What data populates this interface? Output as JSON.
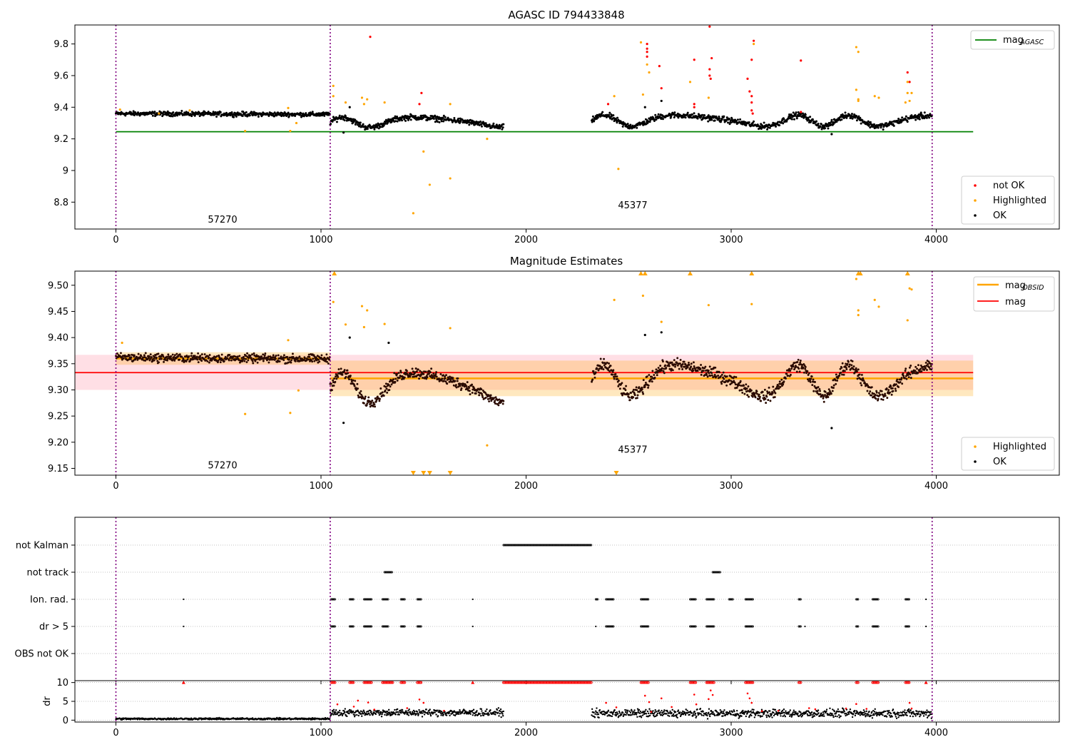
{
  "figure": {
    "title": "AGASC ID 794433848"
  },
  "chart_data": [
    {
      "type": "scatter",
      "title": "AGASC ID 794433848",
      "xlim": [
        -200,
        4600
      ],
      "ylim": [
        8.63,
        9.92
      ],
      "xticks": [
        0,
        1000,
        2000,
        3000,
        4000
      ],
      "yticks": [
        8.8,
        9.0,
        9.2,
        9.4,
        9.6,
        9.8
      ],
      "grid": false,
      "obs_boundaries": [
        0,
        1045,
        3980
      ],
      "obsid_labels": [
        {
          "text": "57270",
          "x": 520,
          "y": 8.67
        },
        {
          "text": "45377",
          "x": 2520,
          "y": 8.76
        }
      ],
      "hlines": [
        {
          "name": "mag_{AGASC}",
          "y": 9.245,
          "x0": 0,
          "x1": 4180,
          "color": "#008000"
        }
      ],
      "segments": [
        {
          "x0": 0,
          "x1": 1045,
          "y": 9.36,
          "noise": 0.012,
          "wave": 0.0,
          "trend": -0.006
        },
        {
          "x0": 1045,
          "x1": 1890,
          "y": 9.305,
          "noise": 0.015,
          "wave": 0.032
        },
        {
          "x0": 2320,
          "x1": 3980,
          "y": 9.315,
          "noise": 0.016,
          "wave": 0.035
        }
      ],
      "series": [
        {
          "name": "not OK",
          "color": "#ff0000",
          "points": [
            [
              1240,
              9.845
            ],
            [
              1490,
              9.49
            ],
            [
              1480,
              9.42
            ],
            [
              2590,
              9.8
            ],
            [
              2590,
              9.77
            ],
            [
              2590,
              9.75
            ],
            [
              2590,
              9.72
            ],
            [
              2650,
              9.66
            ],
            [
              2660,
              9.52
            ],
            [
              2820,
              9.7
            ],
            [
              2820,
              9.42
            ],
            [
              2820,
              9.4
            ],
            [
              2895,
              9.91
            ],
            [
              2895,
              9.64
            ],
            [
              2895,
              9.6
            ],
            [
              2900,
              9.58
            ],
            [
              2905,
              9.71
            ],
            [
              3080,
              9.58
            ],
            [
              3090,
              9.5
            ],
            [
              3100,
              9.7
            ],
            [
              3100,
              9.47
            ],
            [
              3100,
              9.43
            ],
            [
              3100,
              9.38
            ],
            [
              3110,
              9.82
            ],
            [
              3105,
              9.36
            ],
            [
              3340,
              9.695
            ],
            [
              3340,
              9.37
            ],
            [
              3860,
              9.62
            ],
            [
              3870,
              9.56
            ],
            [
              2400,
              9.42
            ]
          ]
        },
        {
          "name": "Highlighted",
          "color": "#ffa500",
          "points": [
            [
              1060,
              9.535
            ],
            [
              1060,
              9.47
            ],
            [
              1120,
              9.43
            ],
            [
              1200,
              9.46
            ],
            [
              1210,
              9.42
            ],
            [
              1225,
              9.45
            ],
            [
              1310,
              9.43
            ],
            [
              1450,
              8.73
            ],
            [
              1500,
              9.12
            ],
            [
              1530,
              8.91
            ],
            [
              1630,
              8.95
            ],
            [
              1630,
              9.42
            ],
            [
              1810,
              9.2
            ],
            [
              2430,
              9.47
            ],
            [
              2450,
              9.01
            ],
            [
              2560,
              9.81
            ],
            [
              2570,
              9.48
            ],
            [
              2590,
              9.67
            ],
            [
              2600,
              9.62
            ],
            [
              2800,
              9.56
            ],
            [
              2890,
              9.46
            ],
            [
              3110,
              9.8
            ],
            [
              3610,
              9.78
            ],
            [
              3620,
              9.75
            ],
            [
              3610,
              9.51
            ],
            [
              3620,
              9.45
            ],
            [
              3620,
              9.44
            ],
            [
              3700,
              9.47
            ],
            [
              3720,
              9.46
            ],
            [
              3860,
              9.56
            ],
            [
              3860,
              9.49
            ],
            [
              3880,
              9.49
            ],
            [
              3870,
              9.44
            ],
            [
              3850,
              9.43
            ],
            [
              630,
              9.25
            ],
            [
              850,
              9.25
            ],
            [
              880,
              9.3
            ],
            [
              20,
              9.385
            ],
            [
              360,
              9.38
            ],
            [
              210,
              9.36
            ],
            [
              840,
              9.395
            ]
          ]
        },
        {
          "name": "OK",
          "color": "#000000",
          "points": [
            [
              1110,
              9.24
            ],
            [
              3490,
              9.23
            ],
            [
              1140,
              9.4
            ],
            [
              2580,
              9.4
            ],
            [
              2660,
              9.44
            ]
          ]
        }
      ],
      "legends": [
        {
          "position": "top-right",
          "entries": [
            "mag_{AGASC}"
          ]
        },
        {
          "position": "lower-right",
          "entries": [
            "not OK",
            "Highlighted",
            "OK"
          ]
        }
      ]
    },
    {
      "type": "scatter",
      "title": "Magnitude Estimates",
      "xlim": [
        -200,
        4600
      ],
      "ylim": [
        9.137,
        9.527
      ],
      "xticks": [
        0,
        1000,
        2000,
        3000,
        4000
      ],
      "yticks": [
        9.15,
        9.2,
        9.25,
        9.3,
        9.35,
        9.4,
        9.45,
        9.5
      ],
      "ytick_labels": [
        "9.15",
        "9.20",
        "9.25",
        "9.30",
        "9.35",
        "9.40",
        "9.45",
        "9.50"
      ],
      "grid": false,
      "obs_boundaries": [
        0,
        1045,
        3980
      ],
      "obsid_labels": [
        {
          "text": "57270",
          "x": 520,
          "y": 9.15
        },
        {
          "text": "45377",
          "x": 2520,
          "y": 9.18
        }
      ],
      "bands": [
        {
          "name": "mag band",
          "x0": -200,
          "x1": 4180,
          "y0": 9.3,
          "y1": 9.367,
          "color": "#ffc0cb",
          "opacity": 0.5
        },
        {
          "name": "mag_{OBSID} band 1",
          "x0": 0,
          "x1": 1045,
          "y0": 9.348,
          "y1": 9.372,
          "color": "#ffa500",
          "opacity": 0.25
        },
        {
          "name": "mag_{OBSID} band 2",
          "x0": 1045,
          "x1": 4180,
          "y0": 9.288,
          "y1": 9.356,
          "color": "#ffa500",
          "opacity": 0.25
        }
      ],
      "hlines": [
        {
          "name": "mag",
          "y": 9.333,
          "x0": -200,
          "x1": 4180,
          "color": "#ff0000"
        },
        {
          "name": "mag_{OBSID}",
          "y": 9.36,
          "x0": 0,
          "x1": 1045,
          "color": "#ffa500"
        },
        {
          "name": "mag_{OBSID}",
          "y": 9.322,
          "x0": 1045,
          "x1": 4180,
          "color": "#ffa500"
        }
      ],
      "segments": [
        {
          "x0": 0,
          "x1": 1045,
          "y": 9.362,
          "noise": 0.007,
          "wave": 0.0,
          "trend": -0.003
        },
        {
          "x0": 1045,
          "x1": 1890,
          "y": 9.305,
          "noise": 0.009,
          "wave": 0.028
        },
        {
          "x0": 2320,
          "x1": 3980,
          "y": 9.318,
          "noise": 0.01,
          "wave": 0.03
        }
      ],
      "series": [
        {
          "name": "Highlighted",
          "color": "#ffa500",
          "points": [
            [
              1060,
              9.468
            ],
            [
              1120,
              9.425
            ],
            [
              1200,
              9.46
            ],
            [
              1210,
              9.42
            ],
            [
              1225,
              9.452
            ],
            [
              1310,
              9.426
            ],
            [
              1630,
              9.418
            ],
            [
              1810,
              9.194
            ],
            [
              2430,
              9.472
            ],
            [
              2570,
              9.48
            ],
            [
              2660,
              9.43
            ],
            [
              2890,
              9.462
            ],
            [
              3100,
              9.464
            ],
            [
              3610,
              9.512
            ],
            [
              3620,
              9.452
            ],
            [
              3620,
              9.443
            ],
            [
              3700,
              9.472
            ],
            [
              3720,
              9.459
            ],
            [
              3860,
              9.433
            ],
            [
              3870,
              9.494
            ],
            [
              3880,
              9.492
            ],
            [
              630,
              9.254
            ],
            [
              850,
              9.256
            ],
            [
              890,
              9.299
            ],
            [
              30,
              9.39
            ],
            [
              840,
              9.395
            ]
          ]
        },
        {
          "name": "OK",
          "color": "#000000",
          "points": [
            [
              1110,
              9.237
            ],
            [
              3490,
              9.227
            ],
            [
              1140,
              9.4
            ],
            [
              2580,
              9.405
            ],
            [
              2660,
              9.41
            ],
            [
              1330,
              9.39
            ]
          ]
        }
      ],
      "markers_up": [
        1065,
        2560,
        2580,
        2800,
        3100,
        3620,
        3630,
        3860
      ],
      "markers_down": [
        1450,
        1500,
        1530,
        1630,
        2440
      ],
      "legends": [
        {
          "position": "top-right",
          "entries": [
            "mag_{OBSID}",
            "mag"
          ]
        },
        {
          "position": "lower-right",
          "entries": [
            "Highlighted",
            "OK"
          ]
        }
      ]
    },
    {
      "type": "scatter",
      "title": "",
      "xlim": [
        -200,
        4600
      ],
      "xticks": [
        0,
        1000,
        2000,
        3000,
        4000
      ],
      "obs_boundaries": [
        0,
        1045,
        3980
      ],
      "flag_rows": [
        {
          "label": "not Kalman",
          "ranges": [
            [
              1890,
              2320
            ]
          ],
          "points": []
        },
        {
          "label": "not track",
          "ranges": [
            [
              1310,
              1350
            ],
            [
              2910,
              2950
            ]
          ],
          "points": []
        },
        {
          "label": "Ion. rad.",
          "ranges": [
            [
              1050,
              1070
            ],
            [
              1140,
              1160
            ],
            [
              1210,
              1250
            ],
            [
              1300,
              1330
            ],
            [
              1390,
              1410
            ],
            [
              1470,
              1490
            ],
            [
              2340,
              2350
            ],
            [
              2390,
              2430
            ],
            [
              2560,
              2600
            ],
            [
              2800,
              2830
            ],
            [
              2880,
              2920
            ],
            [
              2990,
              3010
            ],
            [
              3070,
              3110
            ],
            [
              3330,
              3340
            ],
            [
              3610,
              3620
            ],
            [
              3690,
              3720
            ],
            [
              3850,
              3870
            ]
          ],
          "points": [
            330,
            1740,
            3950
          ]
        },
        {
          "label": "dr > 5",
          "ranges": [
            [
              1050,
              1070
            ],
            [
              1140,
              1160
            ],
            [
              1210,
              1250
            ],
            [
              1300,
              1330
            ],
            [
              1390,
              1410
            ],
            [
              1470,
              1490
            ],
            [
              2390,
              2430
            ],
            [
              2560,
              2600
            ],
            [
              2800,
              2830
            ],
            [
              2880,
              2920
            ],
            [
              3070,
              3110
            ],
            [
              3330,
              3340
            ],
            [
              3610,
              3620
            ],
            [
              3690,
              3720
            ],
            [
              3850,
              3870
            ]
          ],
          "points": [
            330,
            1740,
            2340,
            3360,
            3950
          ]
        },
        {
          "label": "OBS not OK",
          "ranges": [],
          "points": []
        }
      ]
    },
    {
      "type": "scatter",
      "title": "",
      "ylabel": "dr",
      "xlim": [
        -200,
        4600
      ],
      "ylim": [
        -0.5,
        10.5
      ],
      "xticks": [
        0,
        1000,
        2000,
        3000,
        4000
      ],
      "yticks": [
        0,
        5,
        10
      ],
      "obs_boundaries": [
        0,
        1045,
        3980
      ],
      "segments": [
        {
          "x0": 0,
          "x1": 1045,
          "y": 0.35,
          "noise": 0.2
        },
        {
          "x0": 1045,
          "x1": 1890,
          "y": 2.0,
          "noise": 0.8
        },
        {
          "x0": 2320,
          "x1": 3980,
          "y": 1.8,
          "noise": 0.9
        }
      ],
      "clipped_red": [
        [
          1890,
          2320
        ],
        [
          1050,
          1070
        ],
        [
          1140,
          1160
        ],
        [
          1210,
          1250
        ],
        [
          1300,
          1350
        ],
        [
          1390,
          1410
        ],
        [
          1470,
          1490
        ],
        [
          2560,
          2600
        ],
        [
          2800,
          2830
        ],
        [
          2880,
          2920
        ],
        [
          3070,
          3110
        ],
        [
          3330,
          3340
        ],
        [
          3610,
          3620
        ],
        [
          3690,
          3720
        ],
        [
          3850,
          3870
        ],
        [
          1740,
          1740
        ],
        [
          330,
          330
        ],
        [
          3950,
          3950
        ]
      ],
      "red_points": [
        [
          1080,
          4.2
        ],
        [
          1160,
          3.6
        ],
        [
          1180,
          5.2
        ],
        [
          1230,
          4.7
        ],
        [
          1260,
          2.8
        ],
        [
          1420,
          3.2
        ],
        [
          1480,
          5.5
        ],
        [
          1500,
          4.6
        ],
        [
          1600,
          2.5
        ],
        [
          2390,
          4.6
        ],
        [
          2440,
          3.4
        ],
        [
          2580,
          6.5
        ],
        [
          2600,
          4.8
        ],
        [
          2660,
          5.8
        ],
        [
          2710,
          3.5
        ],
        [
          2820,
          6.8
        ],
        [
          2830,
          4.2
        ],
        [
          2890,
          5.6
        ],
        [
          2900,
          7.9
        ],
        [
          2910,
          6.7
        ],
        [
          3080,
          7.1
        ],
        [
          3090,
          5.8
        ],
        [
          3100,
          4.6
        ],
        [
          3230,
          2.5
        ],
        [
          3380,
          3.2
        ],
        [
          3410,
          2.9
        ],
        [
          3560,
          3.1
        ],
        [
          3610,
          4.3
        ],
        [
          3660,
          3.0
        ],
        [
          3870,
          4.6
        ],
        [
          3880,
          3.1
        ],
        [
          2610,
          2.2
        ],
        [
          3150,
          2.4
        ]
      ]
    }
  ]
}
